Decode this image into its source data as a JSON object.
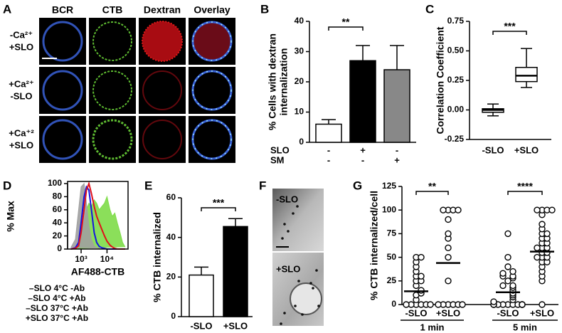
{
  "panel_labels": [
    "A",
    "B",
    "C",
    "D",
    "E",
    "F",
    "G"
  ],
  "panel_a": {
    "channels": [
      {
        "name": "BCR",
        "color": "#3a62d8"
      },
      {
        "name": "CTB",
        "color": "#5aa51c"
      },
      {
        "name": "Dextran",
        "color": "#d4141c"
      },
      {
        "name": "Overlay",
        "color": "#000000"
      }
    ],
    "rows": [
      [
        "-Ca²⁺",
        "+SLO"
      ],
      [
        "+Ca²⁺",
        "-SLO"
      ],
      [
        "+Ca⁺²",
        "+SLO"
      ]
    ]
  },
  "panel_f": {
    "labels": [
      "-SLO",
      "+SLO"
    ]
  },
  "chart_data": [
    {
      "type": "bar",
      "ylabel": [
        "% Cells with dextran",
        "internalization"
      ],
      "categories": [
        null,
        null,
        null
      ],
      "values": [
        6,
        27,
        24
      ],
      "errors": [
        1.5,
        5,
        8
      ],
      "colors": [
        "#ffffff",
        "#000000",
        "#888888"
      ],
      "ylim": [
        0,
        40
      ],
      "yticks": [
        0,
        10,
        20,
        30,
        40
      ],
      "conditions": [
        {
          "name": "SLO",
          "values": [
            "-",
            "+",
            "-"
          ]
        },
        {
          "name": "SM",
          "values": [
            "-",
            "-",
            "+"
          ]
        }
      ],
      "significance": [
        {
          "between": [
            0,
            1
          ],
          "label": "**"
        }
      ]
    },
    {
      "type": "box",
      "ylabel": "Correlation Coefficient",
      "categories": [
        "-SLO",
        "+SLO"
      ],
      "boxes": [
        {
          "min": -0.05,
          "q1": -0.02,
          "median": 0,
          "q3": 0.01,
          "max": 0.05
        },
        {
          "min": 0.19,
          "q1": 0.24,
          "median": 0.29,
          "q3": 0.36,
          "max": 0.52
        }
      ],
      "ylim": [
        -0.25,
        0.75
      ],
      "yticks": [
        {
          "value": -0.25,
          "label": "-0.25"
        },
        {
          "value": 0,
          "label": "0.00"
        },
        {
          "value": 0.25,
          "label": "0.25"
        },
        {
          "value": 0.5,
          "label": "0.50"
        },
        {
          "value": 0.75,
          "label": "0.75"
        }
      ],
      "significance": [
        {
          "between": [
            0,
            1
          ],
          "label": "***"
        }
      ]
    },
    {
      "type": "line",
      "ylabel": "% Max",
      "xlabel": "AF488-CTB",
      "xscale": "log",
      "x": [
        400,
        600,
        800,
        1000,
        1300,
        1600,
        2000,
        2500,
        3200,
        4000,
        5000,
        6300,
        8000,
        10000,
        13000,
        16000,
        20000,
        25000,
        32000,
        40000,
        50000
      ],
      "series": [
        {
          "name": "–SLO 4°C -Ab",
          "color": "#7edc48",
          "label_color": "#6cc02b",
          "filled": true,
          "values": [
            0,
            2,
            8,
            20,
            40,
            60,
            70,
            65,
            75,
            70,
            60,
            65,
            70,
            80,
            60,
            50,
            55,
            40,
            25,
            10,
            3
          ]
        },
        {
          "name": "–SLO 4°C +Ab",
          "color": "#a0a0a0",
          "label_color": "#999999",
          "filled": true,
          "values": [
            2,
            15,
            60,
            95,
            100,
            70,
            35,
            15,
            5,
            2,
            1,
            0,
            0,
            0,
            0,
            0,
            0,
            0,
            0,
            0,
            0
          ]
        },
        {
          "name": "–SLO 37°C +Ab",
          "color": "#1414e0",
          "label_color": "#1a1adb",
          "filled": false,
          "values": [
            0,
            2,
            10,
            40,
            80,
            95,
            90,
            60,
            25,
            10,
            4,
            2,
            1,
            0,
            0,
            0,
            0,
            0,
            0,
            0,
            0
          ]
        },
        {
          "name": "+SLO 37°C +Ab",
          "color": "#e0101a",
          "label_color": "#e0141c",
          "filled": false,
          "values": [
            0,
            1,
            5,
            25,
            60,
            90,
            100,
            85,
            65,
            50,
            40,
            30,
            20,
            12,
            6,
            3,
            1,
            0,
            0,
            0,
            0
          ]
        }
      ],
      "xlim": [
        300,
        65000
      ],
      "xticks": [
        {
          "value": 1000,
          "label": "10³"
        },
        {
          "value": 10000,
          "label": "10⁴"
        }
      ],
      "ylim": [
        0,
        100
      ],
      "yticks": [
        0,
        20,
        40,
        60,
        80,
        100
      ]
    },
    {
      "type": "bar",
      "ylabel": "% CTB internalized",
      "categories": [
        "-SLO",
        "+SLO"
      ],
      "values": [
        21,
        45.5
      ],
      "errors": [
        4,
        4
      ],
      "colors": [
        "#ffffff",
        "#000000"
      ],
      "ylim": [
        0,
        60
      ],
      "yticks": [
        0,
        20,
        40,
        60
      ],
      "significance": [
        {
          "between": [
            0,
            1
          ],
          "label": "***"
        }
      ]
    },
    {
      "type": "strip",
      "ylabel": "% CTB internalized/cell",
      "ylim": [
        0,
        125
      ],
      "yticks": [
        0,
        25,
        50,
        75,
        100,
        125
      ],
      "groups": [
        {
          "name": "1 min",
          "categories": [
            "-SLO",
            "+SLO"
          ],
          "significance": "**",
          "means": [
            14,
            44
          ],
          "points": [
            [
              0,
              0,
              0,
              0,
              0,
              0,
              5,
              10,
              12,
              15,
              20,
              25,
              25,
              30,
              30,
              35,
              40,
              45,
              50,
              50
            ],
            [
              0,
              0,
              0,
              0,
              0,
              0,
              25,
              50,
              60,
              70,
              75,
              90,
              100,
              100,
              100,
              100
            ]
          ]
        },
        {
          "name": "5 min",
          "categories": [
            "-SLO",
            "+SLO"
          ],
          "significance": "****",
          "means": [
            13,
            56
          ],
          "points": [
            [
              0,
              0,
              0,
              0,
              0,
              0,
              0,
              0,
              0,
              0,
              0,
              0,
              3,
              5,
              8,
              10,
              12,
              15,
              18,
              20,
              20,
              25,
              28,
              30,
              30,
              33,
              35,
              40,
              50,
              75
            ],
            [
              0,
              25,
              30,
              35,
              40,
              45,
              45,
              50,
              50,
              50,
              55,
              55,
              60,
              60,
              60,
              65,
              65,
              70,
              70,
              75,
              75,
              80,
              85,
              95,
              100,
              100,
              100,
              100
            ]
          ]
        }
      ]
    }
  ]
}
